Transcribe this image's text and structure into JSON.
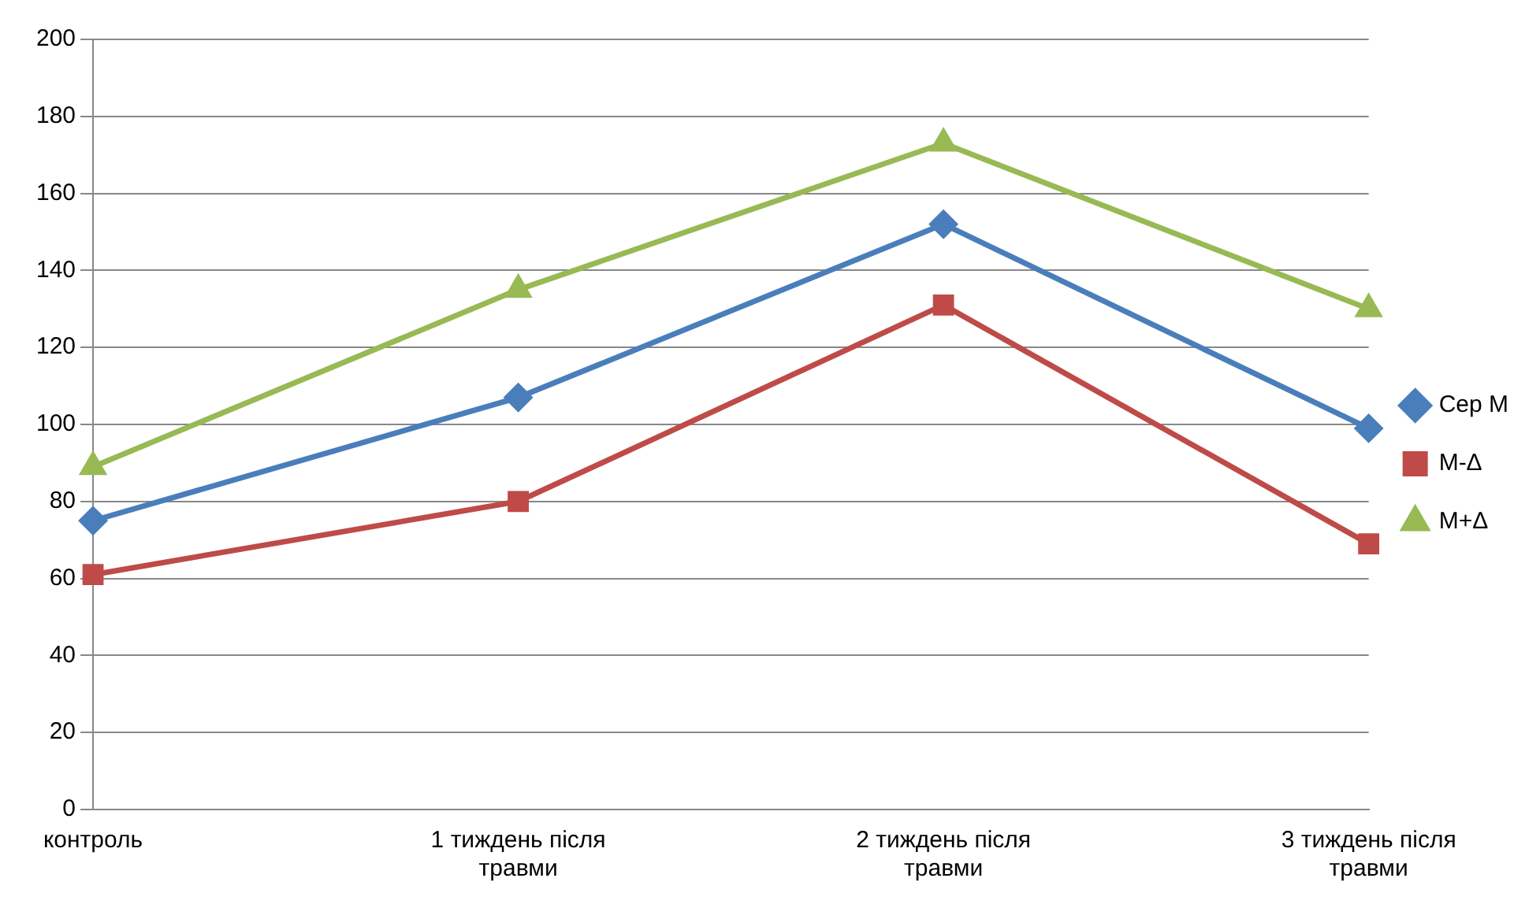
{
  "chart_data": {
    "type": "line",
    "categories": [
      "контроль",
      "1 тиждень після травми",
      "2 тиждень після травми",
      "3 тиждень після травми"
    ],
    "series": [
      {
        "name": "Сер М",
        "color": "#4a7ebb",
        "marker": "diamond",
        "values": [
          75,
          107,
          152,
          99
        ]
      },
      {
        "name": "М-Δ",
        "color": "#be4b48",
        "marker": "square",
        "values": [
          61,
          80,
          131,
          69
        ]
      },
      {
        "name": "М+Δ",
        "color": "#98b954",
        "marker": "triangle",
        "values": [
          89,
          135,
          173,
          130
        ]
      }
    ],
    "ylim": [
      0,
      200
    ],
    "yticks": [
      0,
      20,
      40,
      60,
      80,
      100,
      120,
      140,
      160,
      180,
      200
    ],
    "grid": "y",
    "legend": "right"
  }
}
